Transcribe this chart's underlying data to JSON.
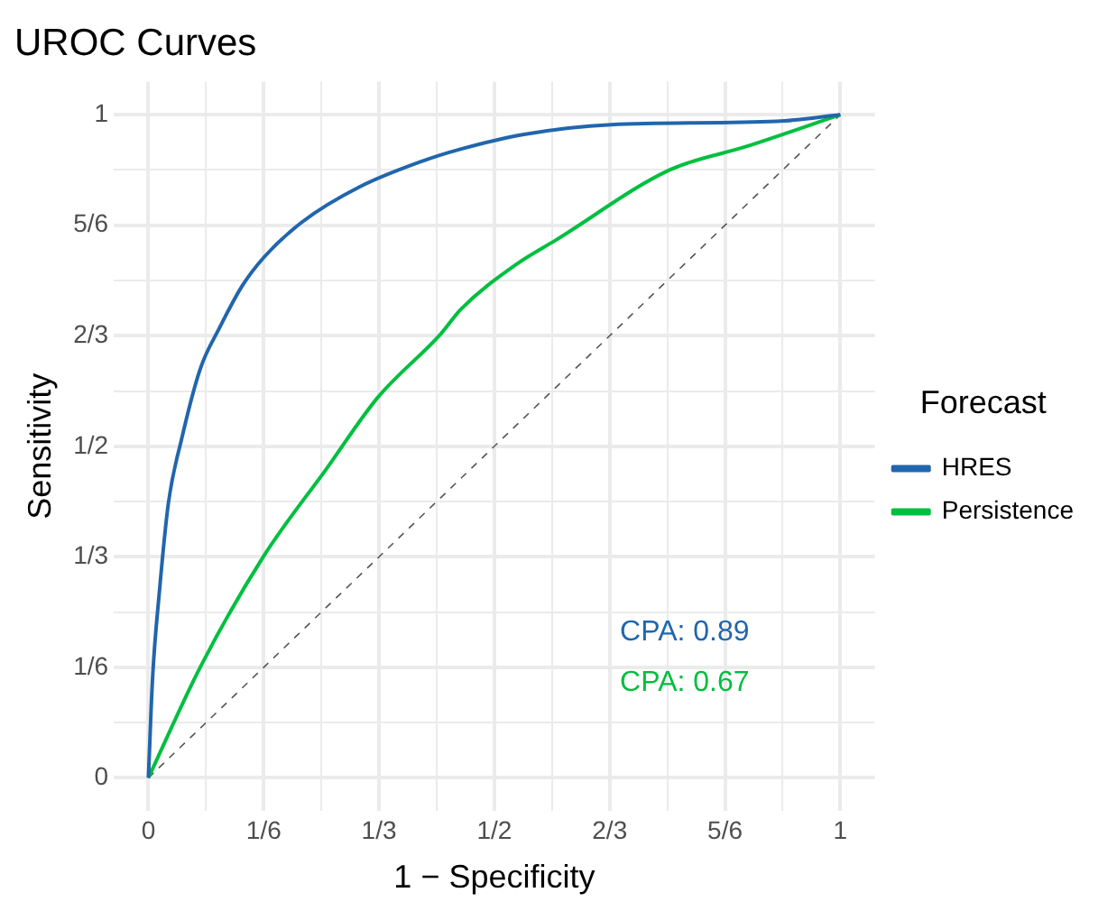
{
  "chart_data": {
    "type": "line",
    "title": "UROC Curves",
    "xlabel": "1 − Specificity",
    "ylabel": "Sensitivity",
    "legend_title": "Forecast",
    "legend": "right",
    "grid": true,
    "marker": "none",
    "xlim": [
      -0.05,
      1.05
    ],
    "ylim": [
      -0.05,
      1.05
    ],
    "xticks": [
      0,
      {
        "value": 0.0833,
        "label": null
      },
      {
        "value": 0.1667,
        "label": "1/6"
      },
      {
        "value": 0.25,
        "label": null
      },
      {
        "value": 0.3333,
        "label": "1/3"
      },
      {
        "value": 0.4167,
        "label": null
      },
      {
        "value": 0.5,
        "label": "1/2"
      },
      {
        "value": 0.5833,
        "label": null
      },
      {
        "value": 0.6667,
        "label": "2/3"
      },
      {
        "value": 0.75,
        "label": null
      },
      {
        "value": 0.8333,
        "label": "5/6"
      },
      {
        "value": 0.9167,
        "label": null
      },
      1
    ],
    "yticks": [
      0,
      {
        "value": 0.0833,
        "label": null
      },
      {
        "value": 0.1667,
        "label": "1/6"
      },
      {
        "value": 0.25,
        "label": null
      },
      {
        "value": 0.3333,
        "label": "1/3"
      },
      {
        "value": 0.4167,
        "label": null
      },
      {
        "value": 0.5,
        "label": "1/2"
      },
      {
        "value": 0.5833,
        "label": null
      },
      {
        "value": 0.6667,
        "label": "2/3"
      },
      {
        "value": 0.75,
        "label": null
      },
      {
        "value": 0.8333,
        "label": "5/6"
      },
      {
        "value": 0.9167,
        "label": null
      },
      1
    ],
    "series": [
      {
        "name": "HRES",
        "color": "#2166ac",
        "line_style": "solid",
        "x": [
          0,
          0.006,
          0.016,
          0.029,
          0.048,
          0.075,
          0.103,
          0.135,
          0.167,
          0.222,
          0.305,
          0.396,
          0.451,
          0.541,
          0.669,
          0.908,
          1
        ],
        "values": [
          0,
          0.15,
          0.282,
          0.415,
          0.511,
          0.617,
          0.679,
          0.741,
          0.785,
          0.838,
          0.891,
          0.93,
          0.948,
          0.97,
          0.985,
          0.99,
          1
        ]
      },
      {
        "name": "Persistence",
        "color": "#00bf40",
        "line_style": "solid",
        "x": [
          0,
          0.075,
          0.167,
          0.258,
          0.331,
          0.423,
          0.451,
          0.534,
          0.589,
          0.754,
          0.864,
          1
        ],
        "values": [
          0,
          0.167,
          0.335,
          0.467,
          0.573,
          0.67,
          0.706,
          0.776,
          0.811,
          0.917,
          0.952,
          1
        ]
      },
      {
        "color": "#555555",
        "line_style": "dashed",
        "x": [
          0,
          1
        ],
        "values": [
          0,
          1
        ]
      }
    ],
    "annotations": [
      "CPA: 0.89",
      "CPA: 0.67"
    ]
  }
}
